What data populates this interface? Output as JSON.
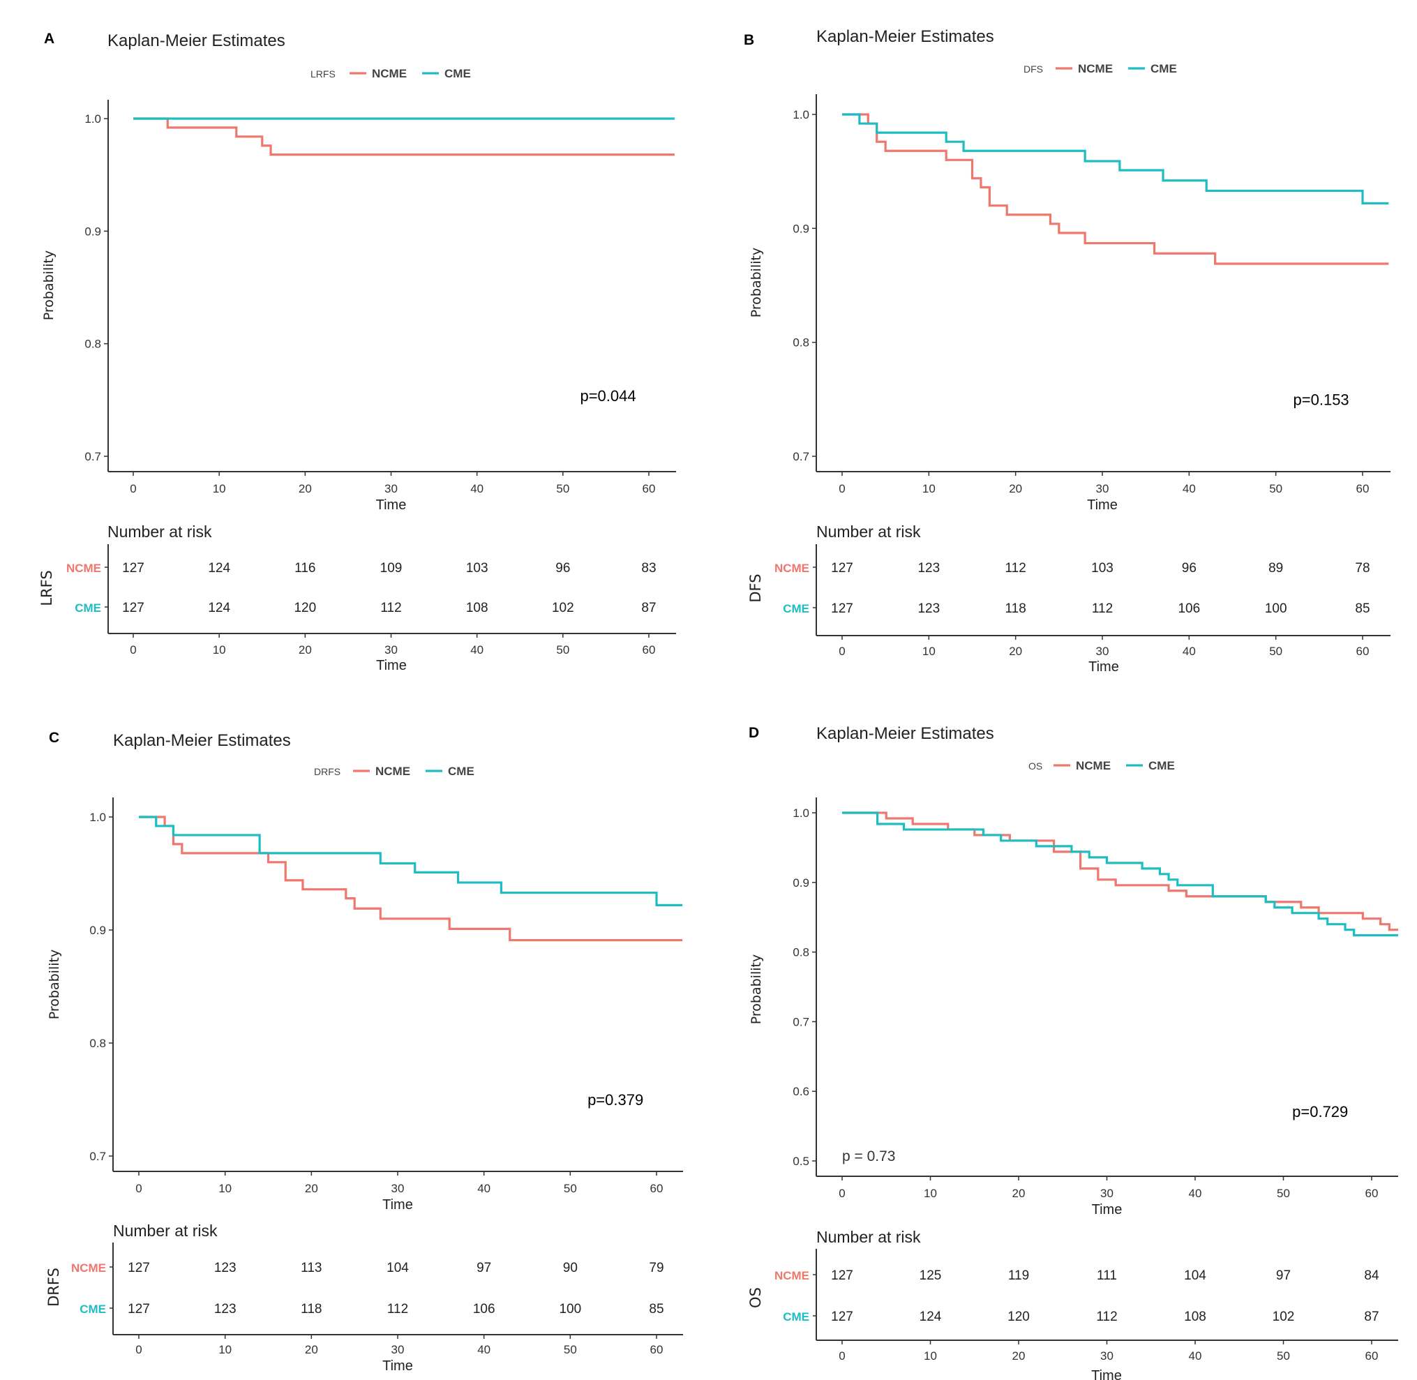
{
  "figure": {
    "colors": {
      "NCME": "#F0776D",
      "CME": "#1DBDC3",
      "axis": "#333333"
    }
  },
  "chart_data": [
    {
      "panel": "A",
      "type": "line",
      "subtype": "kaplan-meier-step",
      "title": "Kaplan-Meier Estimates",
      "legend_title": "LRFS",
      "legend": [
        "NCME",
        "CME"
      ],
      "legend_position": "top",
      "xlabel": "Time",
      "ylabel": "Probability",
      "xlim": [
        -3,
        63
      ],
      "ylim": [
        0.69,
        1.01
      ],
      "xticks": [
        0,
        10,
        20,
        30,
        40,
        50,
        60
      ],
      "yticks": [
        0.7,
        0.8,
        0.9,
        1.0
      ],
      "ytick_labels": [
        "0.7",
        "0.8",
        "0.9",
        "1.0"
      ],
      "grid": false,
      "annotations": [
        {
          "text": "p=0.044",
          "x": 52,
          "y": 0.749
        }
      ],
      "series": [
        {
          "name": "NCME",
          "steps": [
            [
              0,
              1.0
            ],
            [
              4,
              0.992
            ],
            [
              12,
              0.984
            ],
            [
              15,
              0.976
            ],
            [
              16,
              0.968
            ],
            [
              63,
              0.968
            ]
          ]
        },
        {
          "name": "CME",
          "steps": [
            [
              0,
              1.0
            ],
            [
              63,
              1.0
            ]
          ]
        }
      ],
      "risk_table": {
        "title": "Number at risk",
        "strata_label": "LRFS",
        "xlabel": "Time",
        "times": [
          0,
          10,
          20,
          30,
          40,
          50,
          60
        ],
        "rows": [
          {
            "group": "NCME",
            "values": [
              127,
              124,
              116,
              109,
              103,
              96,
              83
            ]
          },
          {
            "group": "CME",
            "values": [
              127,
              124,
              120,
              112,
              108,
              102,
              87
            ]
          }
        ]
      }
    },
    {
      "panel": "B",
      "type": "line",
      "subtype": "kaplan-meier-step",
      "title": "Kaplan-Meier Estimates",
      "legend_title": "DFS",
      "legend": [
        "NCME",
        "CME"
      ],
      "legend_position": "top",
      "xlabel": "Time",
      "ylabel": "Probability",
      "xlim": [
        -3,
        63
      ],
      "ylim": [
        0.69,
        1.01
      ],
      "xticks": [
        0,
        10,
        20,
        30,
        40,
        50,
        60
      ],
      "yticks": [
        0.7,
        0.8,
        0.9,
        1.0
      ],
      "ytick_labels": [
        "0.7",
        "0.8",
        "0.9",
        "1.0"
      ],
      "grid": false,
      "annotations": [
        {
          "text": "p=0.153",
          "x": 52,
          "y": 0.745
        }
      ],
      "series": [
        {
          "name": "NCME",
          "steps": [
            [
              0,
              1.0
            ],
            [
              3,
              0.992
            ],
            [
              4,
              0.976
            ],
            [
              5,
              0.968
            ],
            [
              12,
              0.96
            ],
            [
              15,
              0.944
            ],
            [
              16,
              0.936
            ],
            [
              17,
              0.92
            ],
            [
              19,
              0.912
            ],
            [
              24,
              0.904
            ],
            [
              25,
              0.896
            ],
            [
              28,
              0.887
            ],
            [
              36,
              0.878
            ],
            [
              43,
              0.869
            ],
            [
              63,
              0.869
            ]
          ]
        },
        {
          "name": "CME",
          "steps": [
            [
              0,
              1.0
            ],
            [
              2,
              0.992
            ],
            [
              4,
              0.984
            ],
            [
              12,
              0.976
            ],
            [
              14,
              0.968
            ],
            [
              28,
              0.959
            ],
            [
              32,
              0.951
            ],
            [
              37,
              0.942
            ],
            [
              42,
              0.933
            ],
            [
              60,
              0.922
            ],
            [
              63,
              0.922
            ]
          ]
        }
      ],
      "risk_table": {
        "title": "Number at risk",
        "strata_label": "DFS",
        "xlabel": "Time",
        "times": [
          0,
          10,
          20,
          30,
          40,
          50,
          60
        ],
        "rows": [
          {
            "group": "NCME",
            "values": [
              127,
              123,
              112,
              103,
              96,
              89,
              78
            ]
          },
          {
            "group": "CME",
            "values": [
              127,
              123,
              118,
              112,
              106,
              100,
              85
            ]
          }
        ]
      }
    },
    {
      "panel": "C",
      "type": "line",
      "subtype": "kaplan-meier-step",
      "title": "Kaplan-Meier Estimates",
      "legend_title": "DRFS",
      "legend": [
        "NCME",
        "CME"
      ],
      "legend_position": "top",
      "xlabel": "Time",
      "ylabel": "Probability",
      "xlim": [
        -3,
        63
      ],
      "ylim": [
        0.69,
        1.01
      ],
      "xticks": [
        0,
        10,
        20,
        30,
        40,
        50,
        60
      ],
      "yticks": [
        0.7,
        0.8,
        0.9,
        1.0
      ],
      "ytick_labels": [
        "0.7",
        "0.8",
        "0.9",
        "1.0"
      ],
      "grid": false,
      "annotations": [
        {
          "text": "p=0.379",
          "x": 52,
          "y": 0.745
        }
      ],
      "series": [
        {
          "name": "NCME",
          "steps": [
            [
              0,
              1.0
            ],
            [
              3,
              0.992
            ],
            [
              4,
              0.976
            ],
            [
              5,
              0.968
            ],
            [
              15,
              0.96
            ],
            [
              17,
              0.944
            ],
            [
              19,
              0.936
            ],
            [
              24,
              0.928
            ],
            [
              25,
              0.919
            ],
            [
              28,
              0.91
            ],
            [
              36,
              0.901
            ],
            [
              43,
              0.891
            ],
            [
              63,
              0.891
            ]
          ]
        },
        {
          "name": "CME",
          "steps": [
            [
              0,
              1.0
            ],
            [
              2,
              0.992
            ],
            [
              4,
              0.984
            ],
            [
              14,
              0.968
            ],
            [
              28,
              0.959
            ],
            [
              32,
              0.951
            ],
            [
              37,
              0.942
            ],
            [
              42,
              0.933
            ],
            [
              60,
              0.922
            ],
            [
              63,
              0.922
            ]
          ]
        }
      ],
      "risk_table": {
        "title": "Number at risk",
        "strata_label": "DRFS",
        "xlabel": "Time",
        "times": [
          0,
          10,
          20,
          30,
          40,
          50,
          60
        ],
        "rows": [
          {
            "group": "NCME",
            "values": [
              127,
              123,
              113,
              104,
              97,
              90,
              79
            ]
          },
          {
            "group": "CME",
            "values": [
              127,
              123,
              118,
              112,
              106,
              100,
              85
            ]
          }
        ]
      }
    },
    {
      "panel": "D",
      "type": "line",
      "subtype": "kaplan-meier-step",
      "title": "Kaplan-Meier Estimates",
      "legend_title": "OS",
      "legend": [
        "NCME",
        "CME"
      ],
      "legend_position": "top",
      "xlabel": "Time",
      "ylabel": "Probability",
      "xlim": [
        -3,
        63
      ],
      "ylim": [
        0.478,
        1.022
      ],
      "xticks": [
        0,
        10,
        20,
        30,
        40,
        50,
        60
      ],
      "yticks": [
        0.5,
        0.6,
        0.7,
        0.8,
        0.9,
        1.0
      ],
      "ytick_labels": [
        "0.5",
        "0.6",
        "0.7",
        "0.8",
        "0.9",
        "1.0"
      ],
      "grid": false,
      "annotations": [
        {
          "text": "p=0.729",
          "x": 51,
          "y": 0.563
        },
        {
          "text": "p = 0.73",
          "x": 0,
          "y": 0.5
        }
      ],
      "series": [
        {
          "name": "NCME",
          "steps": [
            [
              0,
              1.0
            ],
            [
              5,
              0.992
            ],
            [
              8,
              0.984
            ],
            [
              12,
              0.976
            ],
            [
              15,
              0.968
            ],
            [
              19,
              0.96
            ],
            [
              24,
              0.944
            ],
            [
              27,
              0.92
            ],
            [
              29,
              0.904
            ],
            [
              31,
              0.896
            ],
            [
              37,
              0.888
            ],
            [
              39,
              0.88
            ],
            [
              48,
              0.872
            ],
            [
              52,
              0.864
            ],
            [
              54,
              0.856
            ],
            [
              59,
              0.848
            ],
            [
              61,
              0.84
            ],
            [
              62,
              0.832
            ],
            [
              63,
              0.832
            ]
          ]
        },
        {
          "name": "CME",
          "steps": [
            [
              0,
              1.0
            ],
            [
              4,
              0.984
            ],
            [
              7,
              0.976
            ],
            [
              16,
              0.968
            ],
            [
              18,
              0.96
            ],
            [
              22,
              0.952
            ],
            [
              26,
              0.944
            ],
            [
              28,
              0.936
            ],
            [
              30,
              0.928
            ],
            [
              34,
              0.92
            ],
            [
              36,
              0.912
            ],
            [
              37,
              0.904
            ],
            [
              38,
              0.896
            ],
            [
              42,
              0.88
            ],
            [
              48,
              0.872
            ],
            [
              49,
              0.864
            ],
            [
              51,
              0.856
            ],
            [
              54,
              0.848
            ],
            [
              55,
              0.84
            ],
            [
              57,
              0.832
            ],
            [
              58,
              0.824
            ],
            [
              63,
              0.824
            ]
          ]
        }
      ],
      "risk_table": {
        "title": "Number at risk",
        "strata_label": "OS",
        "xlabel": "Time",
        "times": [
          0,
          10,
          20,
          30,
          40,
          50,
          60
        ],
        "rows": [
          {
            "group": "NCME",
            "values": [
              127,
              125,
              119,
              111,
              104,
              97,
              84
            ]
          },
          {
            "group": "CME",
            "values": [
              127,
              124,
              120,
              112,
              108,
              102,
              87
            ]
          }
        ]
      }
    }
  ]
}
